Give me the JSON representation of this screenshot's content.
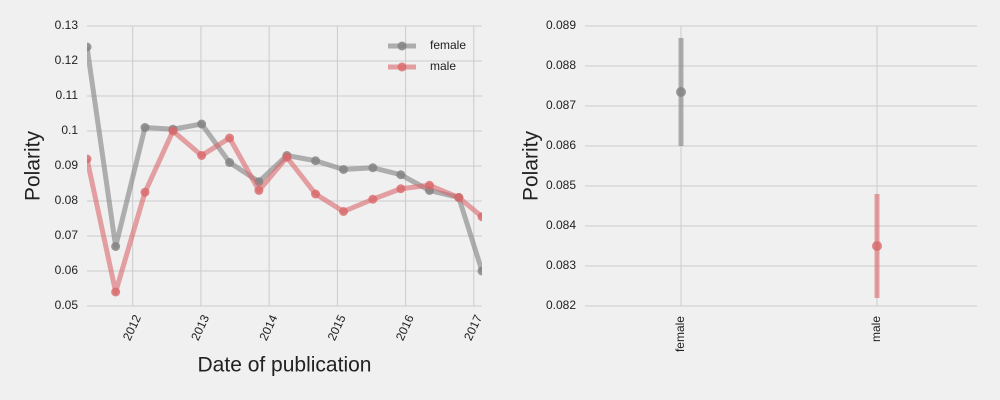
{
  "chart_data": [
    {
      "type": "line",
      "x": [
        2011.33,
        2011.75,
        2012.18,
        2012.59,
        2013.01,
        2013.42,
        2013.85,
        2014.26,
        2014.68,
        2015.09,
        2015.52,
        2015.93,
        2016.35,
        2016.78,
        2017.12
      ],
      "series": [
        {
          "name": "female",
          "color": "#808080",
          "values": [
            0.124,
            0.067,
            0.101,
            0.1005,
            0.102,
            0.091,
            0.0855,
            0.093,
            0.0915,
            0.089,
            0.0895,
            0.0875,
            0.083,
            0.081,
            0.06
          ]
        },
        {
          "name": "male",
          "color": "#d9686a",
          "values": [
            0.092,
            0.054,
            0.0825,
            0.1,
            0.093,
            0.098,
            0.083,
            0.0925,
            0.082,
            0.077,
            0.0805,
            0.0835,
            0.0845,
            0.081,
            0.0755
          ]
        }
      ],
      "xlabel": "Date of publication",
      "ylabel": "Polarity",
      "xlim": [
        2011.33,
        2017.12
      ],
      "xticks": [
        2012,
        2013,
        2014,
        2015,
        2016,
        2017
      ],
      "ylim": [
        0.05,
        0.13
      ],
      "yticks": [
        0.05,
        0.06,
        0.07,
        0.08,
        0.09,
        0.1,
        0.11,
        0.12,
        0.13
      ],
      "grid": true,
      "legend": "upper right"
    },
    {
      "type": "errorbar",
      "categories": [
        "female",
        "male"
      ],
      "values": [
        0.08735,
        0.0835
      ],
      "errors": [
        0.00135,
        0.0013
      ],
      "colors": [
        "#808080",
        "#d9686a"
      ],
      "ylabel": "Polarity",
      "ylim": [
        0.082,
        0.089
      ],
      "yticks": [
        0.082,
        0.083,
        0.084,
        0.085,
        0.086,
        0.087,
        0.088,
        0.089
      ],
      "grid": true
    }
  ]
}
